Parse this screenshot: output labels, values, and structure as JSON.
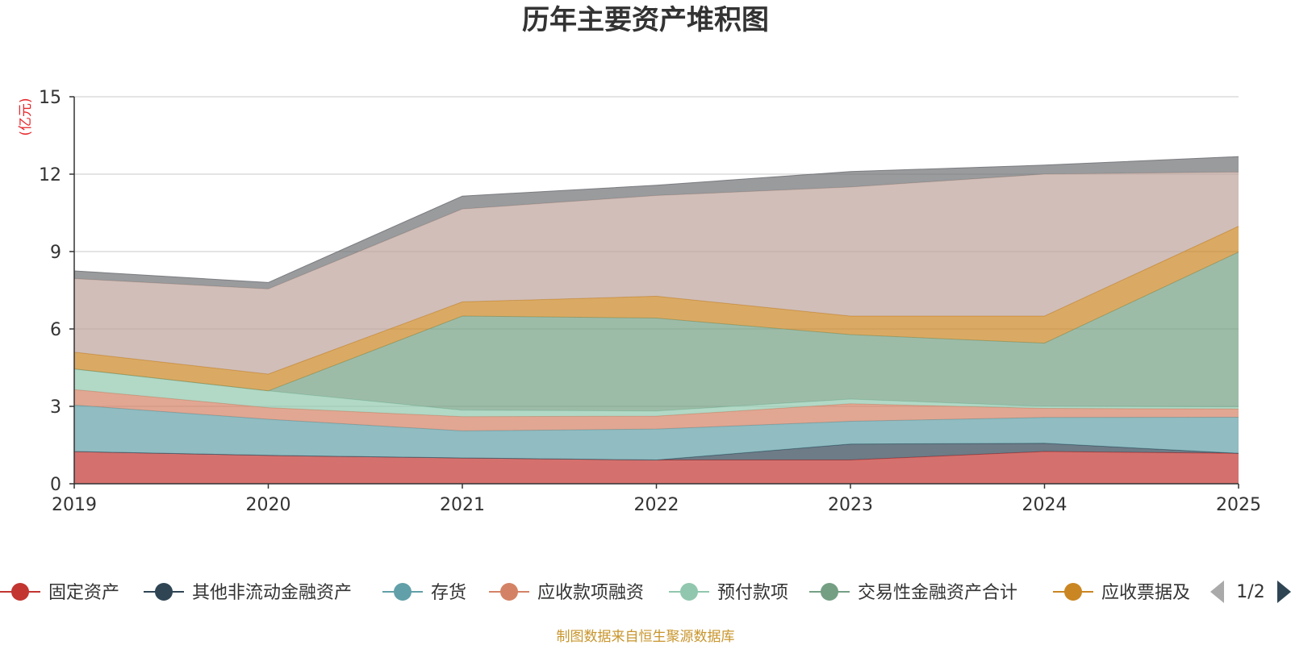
{
  "colors": {
    "background": "#ffffff",
    "grid": "#c8c8c8",
    "axis": "#333333",
    "unit": "#e8262a",
    "source": "#c8952c",
    "pager_active": "#2f4554",
    "pager_inactive": "#aaaaaa"
  },
  "chart_data": {
    "type": "area",
    "stacked": true,
    "title": "历年主要资产堆积图",
    "ylabel": "(亿元)",
    "xlabel": "",
    "categories": [
      "2019",
      "2020",
      "2021",
      "2022",
      "2023",
      "2024",
      "2025"
    ],
    "ylim": [
      0,
      15
    ],
    "yticks": [
      "0",
      "3",
      "6",
      "9",
      "12",
      "15"
    ],
    "grid": true,
    "series": [
      {
        "name": "固定资产",
        "color": "#c23531",
        "legend_color": "#c23531",
        "values": [
          1.25,
          1.1,
          1.0,
          0.92,
          0.92,
          1.25,
          1.18
        ]
      },
      {
        "name": "其他非流动金融资产",
        "color": "#2f4554",
        "legend_color": "#2f4554",
        "values": [
          0.0,
          0.0,
          0.0,
          0.0,
          0.62,
          0.32,
          0.0
        ]
      },
      {
        "name": "存货",
        "color": "#61a0a8",
        "legend_color": "#61a0a8",
        "values": [
          1.8,
          1.4,
          1.05,
          1.2,
          0.88,
          1.0,
          1.4
        ]
      },
      {
        "name": "应收款项融资",
        "color": "#d48265",
        "legend_color": "#d48265",
        "values": [
          0.6,
          0.45,
          0.55,
          0.5,
          0.68,
          0.35,
          0.32
        ]
      },
      {
        "name": "预付款项",
        "color": "#91c7ae",
        "legend_color": "#91c7ae",
        "values": [
          0.8,
          0.65,
          0.25,
          0.2,
          0.18,
          0.08,
          0.08
        ]
      },
      {
        "name": "交易性金融资产合计",
        "color": "#749f83",
        "legend_color": "#749f83",
        "values": [
          0.0,
          0.0,
          3.65,
          3.6,
          2.5,
          2.45,
          6.0
        ]
      },
      {
        "name": "应收票据及",
        "color": "#ca8622",
        "legend_color": "#ca8622",
        "values": [
          0.65,
          0.65,
          0.55,
          0.85,
          0.72,
          1.05,
          1.0
        ]
      },
      {
        "name": "",
        "color": "#bda29a",
        "legend_color": "#bda29a",
        "values": [
          2.85,
          3.3,
          3.6,
          3.9,
          5.0,
          5.5,
          2.1
        ]
      },
      {
        "name": "",
        "color": "#6e7074",
        "legend_color": "#6e7074",
        "values": [
          0.3,
          0.25,
          0.5,
          0.4,
          0.6,
          0.35,
          0.6
        ]
      }
    ]
  },
  "legend": {
    "items": [
      "固定资产",
      "其他非流动金融资产",
      "存货",
      "应收款项融资",
      "预付款项",
      "交易性金融资产合计",
      "应收票据及"
    ],
    "page": "1/2",
    "prev_icon": "triangle-left-icon",
    "next_icon": "triangle-right-icon"
  },
  "footer": {
    "source": "制图数据来自恒生聚源数据库"
  }
}
